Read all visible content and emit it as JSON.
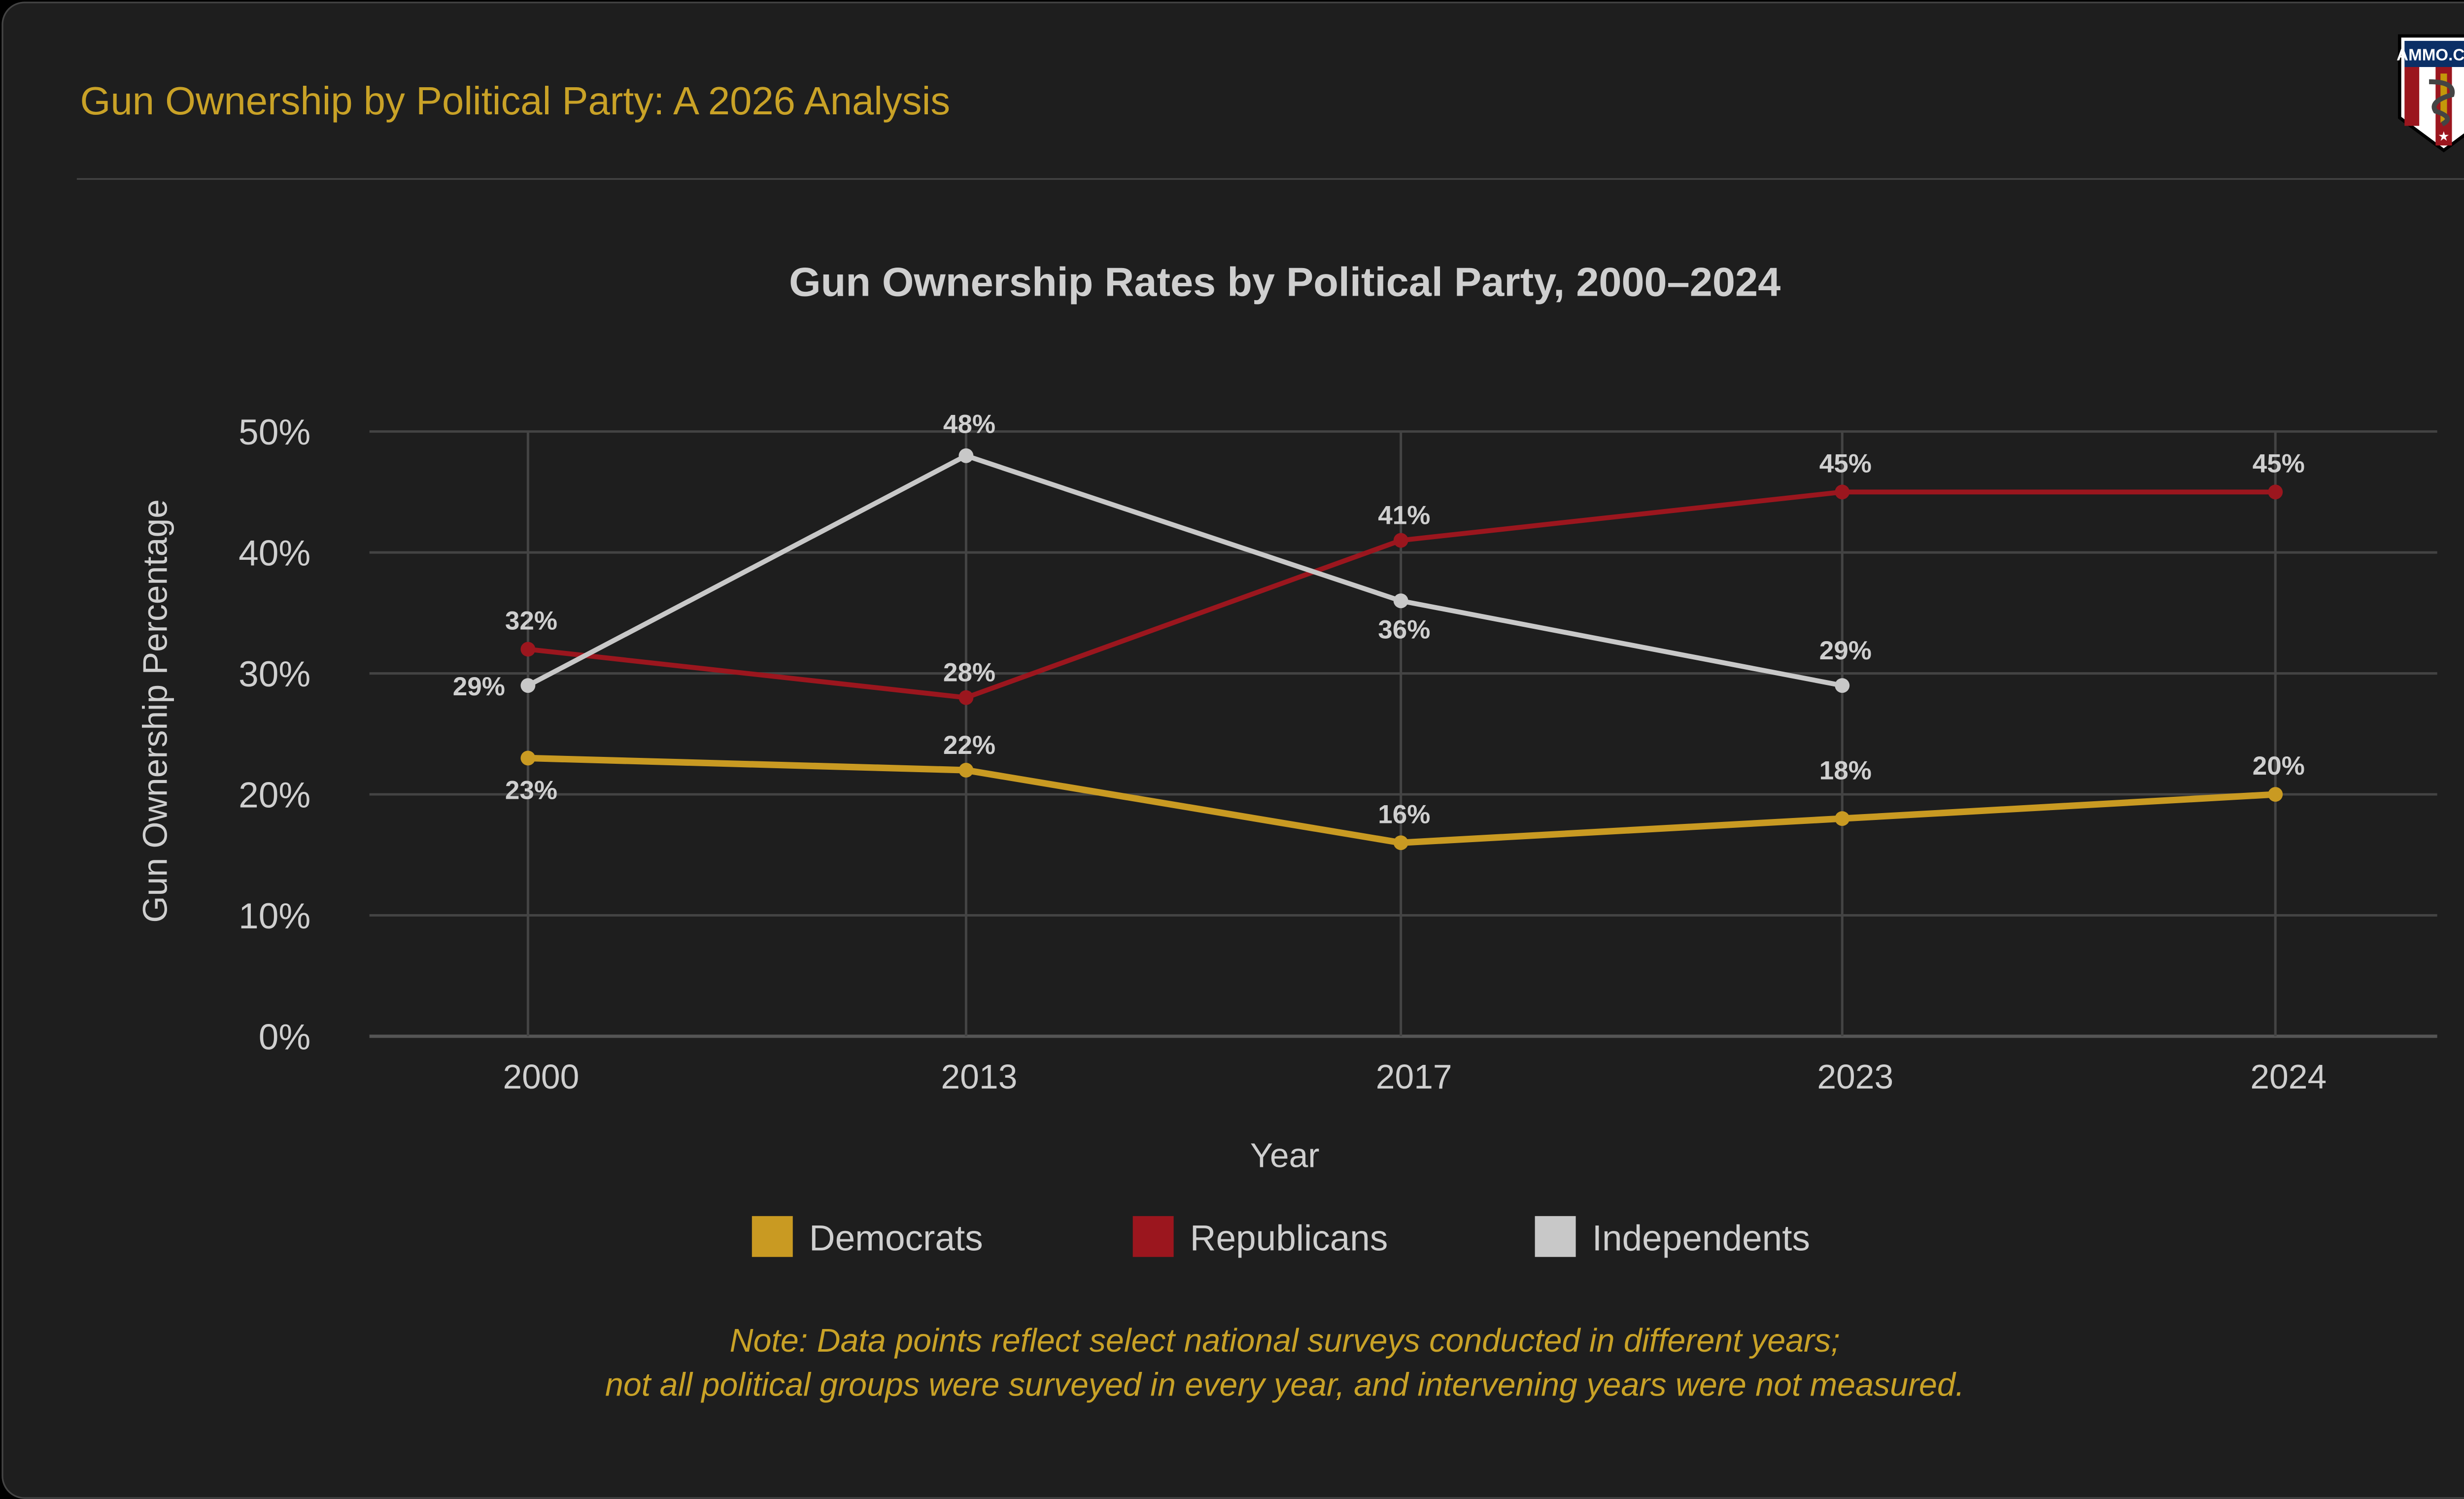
{
  "header": {
    "title": "Gun Ownership by Political Party: A 2026 Analysis",
    "logo_text": "AMMO.COM"
  },
  "note": {
    "line1": "Note: Data points reflect select national surveys conducted in different years;",
    "line2": "not all political groups were surveyed in every year, and intervening years were not measured."
  },
  "chart_data": {
    "type": "line",
    "title": "Gun Ownership Rates by Political Party, 2000–2024",
    "xlabel": "Year",
    "ylabel": "Gun Ownership Percentage",
    "categories": [
      "2000",
      "2013",
      "2017",
      "2023",
      "2024"
    ],
    "ylim": [
      0,
      50
    ],
    "yticks": [
      "0%",
      "10%",
      "20%",
      "30%",
      "40%",
      "50%"
    ],
    "grid": true,
    "legend": "bottom",
    "series": [
      {
        "name": "Democrats",
        "color": "#c99a22",
        "values": [
          23,
          22,
          16,
          18,
          20
        ],
        "labels": [
          "23%",
          "22%",
          "16%",
          "18%",
          "20%"
        ]
      },
      {
        "name": "Republicans",
        "color": "#9b161e",
        "values": [
          32,
          28,
          41,
          45,
          45
        ],
        "labels": [
          "32%",
          "28%",
          "41%",
          "45%",
          "45%"
        ]
      },
      {
        "name": "Independents",
        "color": "#c8c8c8",
        "values": [
          29,
          48,
          36,
          29,
          null
        ],
        "labels": [
          "29%",
          "48%",
          "36%",
          "29%",
          null
        ]
      }
    ]
  }
}
